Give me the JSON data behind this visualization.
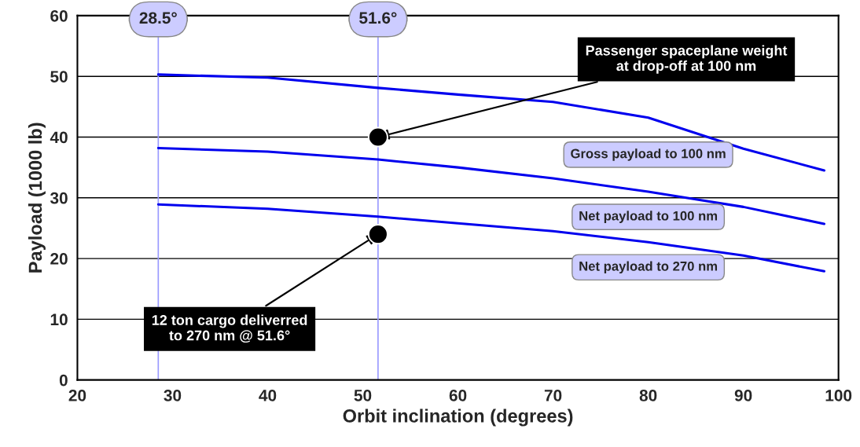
{
  "chart_data": {
    "type": "line",
    "xlabel": "Orbit inclination (degrees)",
    "ylabel": "Payload (1000 lb)",
    "xlim": [
      20,
      100
    ],
    "ylim": [
      0,
      60
    ],
    "xticks": [
      20,
      30,
      40,
      50,
      60,
      70,
      80,
      90,
      100
    ],
    "yticks": [
      0,
      10,
      20,
      30,
      40,
      50,
      60
    ],
    "grid": "y",
    "legend": false,
    "series": [
      {
        "name": "Gross payload to 100 nm",
        "color": "#0000ee",
        "x": [
          28.5,
          40,
          51.6,
          60,
          70,
          80,
          90,
          98.5
        ],
        "values": [
          50.3,
          49.8,
          48.1,
          47.0,
          45.8,
          43.2,
          38.1,
          34.5
        ]
      },
      {
        "name": "Net payload to 100 nm",
        "color": "#0000ee",
        "x": [
          28.5,
          40,
          51.6,
          60,
          70,
          80,
          90,
          98.5
        ],
        "values": [
          38.2,
          37.6,
          36.3,
          35.0,
          33.2,
          31.0,
          28.5,
          25.7
        ]
      },
      {
        "name": "Net payload to 270 nm",
        "color": "#0000ee",
        "x": [
          28.5,
          40,
          51.6,
          60,
          70,
          80,
          90,
          98.5
        ],
        "values": [
          28.9,
          28.2,
          26.9,
          25.8,
          24.5,
          22.7,
          20.5,
          17.9
        ]
      },
      {
        "type": "scatter",
        "color": "#000000",
        "marker": "circle",
        "x": [
          51.6,
          51.6
        ],
        "values": [
          40,
          24
        ]
      }
    ],
    "ref_lines": [
      {
        "axis": "x",
        "value": 28.5,
        "label": "28.5°",
        "color": "#9999ff"
      },
      {
        "axis": "x",
        "value": 51.6,
        "label": "51.6°",
        "color": "#9999ff"
      }
    ],
    "annotations": [
      {
        "text": "Passenger spaceplane weight\nat drop-off at 100 nm",
        "x": 51.6,
        "y": 40
      },
      {
        "text": "12 ton cargo deliverred\nto 270 nm @ 51.6°",
        "x": 51.6,
        "y": 24
      }
    ]
  }
}
